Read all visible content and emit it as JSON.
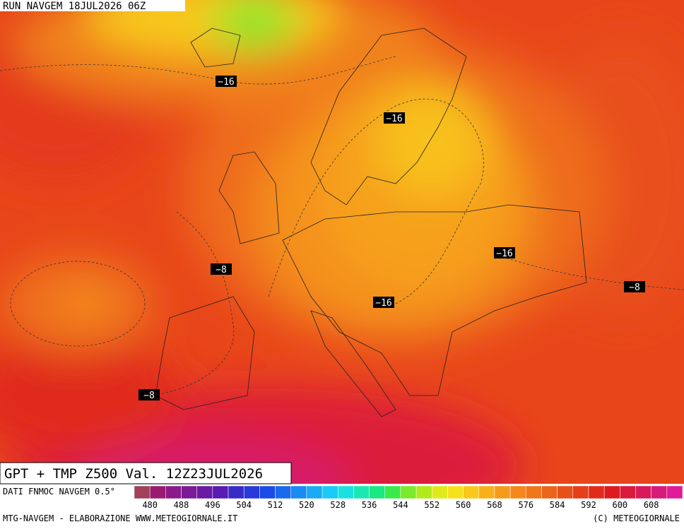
{
  "header": {
    "run": "RUN NAVGEM 18JUL2026 06Z"
  },
  "map": {
    "contour_labels": [
      "−16",
      "−16",
      "−16",
      "−16",
      "−8",
      "−8",
      "−8"
    ]
  },
  "footer": {
    "title": "GPT + TMP Z500 Val. 12Z23JUL2026",
    "source": "DATI FNMOC NAVGEM 0.5°",
    "legend_colors": [
      "#a0405a",
      "#9a1a6e",
      "#8a1a8a",
      "#7a1a96",
      "#6a1aa4",
      "#5a1ab4",
      "#3a2ac8",
      "#2a3ad8",
      "#1a4ae8",
      "#1a6af0",
      "#1a8af4",
      "#1aaaf6",
      "#1acaf8",
      "#1ae0e0",
      "#1ae8b0",
      "#1ae880",
      "#3aea4a",
      "#7aea2a",
      "#b0ea1a",
      "#e0ea1a",
      "#f8e01a",
      "#f8c81a",
      "#f8b01a",
      "#f69a1a",
      "#f4881a",
      "#f0761a",
      "#ec641a",
      "#e8501a",
      "#e63e1a",
      "#e22a1a",
      "#de1a1e",
      "#da1a3a",
      "#d61a5a",
      "#d81a7a",
      "#e01a9a"
    ],
    "legend_ticks": [
      480,
      488,
      496,
      504,
      512,
      520,
      528,
      536,
      544,
      552,
      560,
      568,
      576,
      584,
      592,
      600,
      608
    ],
    "credit": "MTG-NAVGEM - ELABORAZIONE WWW.METEOGIORNALE.IT",
    "copyright": "(C) METEOGIORNALE"
  }
}
